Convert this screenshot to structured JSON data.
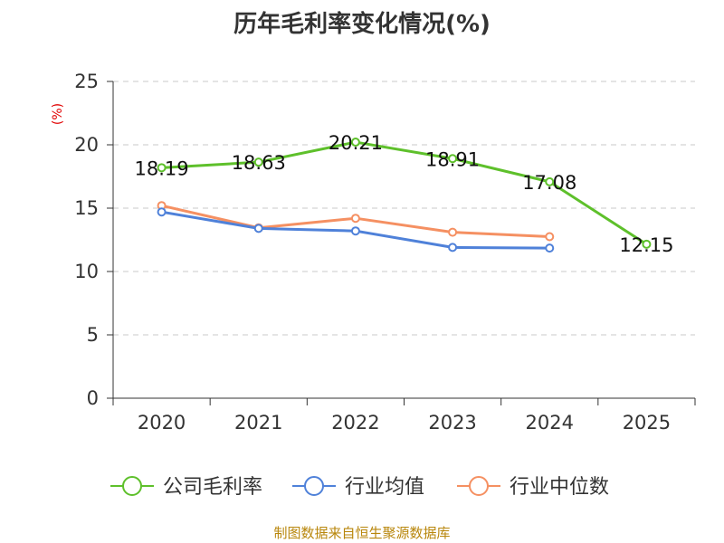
{
  "chart_data": {
    "type": "line",
    "title": "历年毛利率变化情况(%)",
    "ylabel": "(%)",
    "xlabel": "",
    "categories": [
      "2020",
      "2021",
      "2022",
      "2023",
      "2024",
      "2025"
    ],
    "ylim": [
      0,
      25
    ],
    "yticks": [
      0,
      5,
      10,
      15,
      20,
      25
    ],
    "grid": true,
    "legend_position": "bottom",
    "series": [
      {
        "name": "公司毛利率",
        "color": "#5ec02b",
        "values": [
          18.19,
          18.63,
          20.21,
          18.91,
          17.08,
          12.15
        ],
        "labels": [
          "18.19",
          "18.63",
          "20.21",
          "18.91",
          "17.08",
          "12.15"
        ]
      },
      {
        "name": "行业均值",
        "color": "#4f81d9",
        "values": [
          14.7,
          13.4,
          13.2,
          11.9,
          11.85,
          null
        ]
      },
      {
        "name": "行业中位数",
        "color": "#f59062",
        "values": [
          15.2,
          13.45,
          14.2,
          13.1,
          12.75,
          null
        ]
      }
    ]
  },
  "source": "制图数据来自恒生聚源数据库"
}
